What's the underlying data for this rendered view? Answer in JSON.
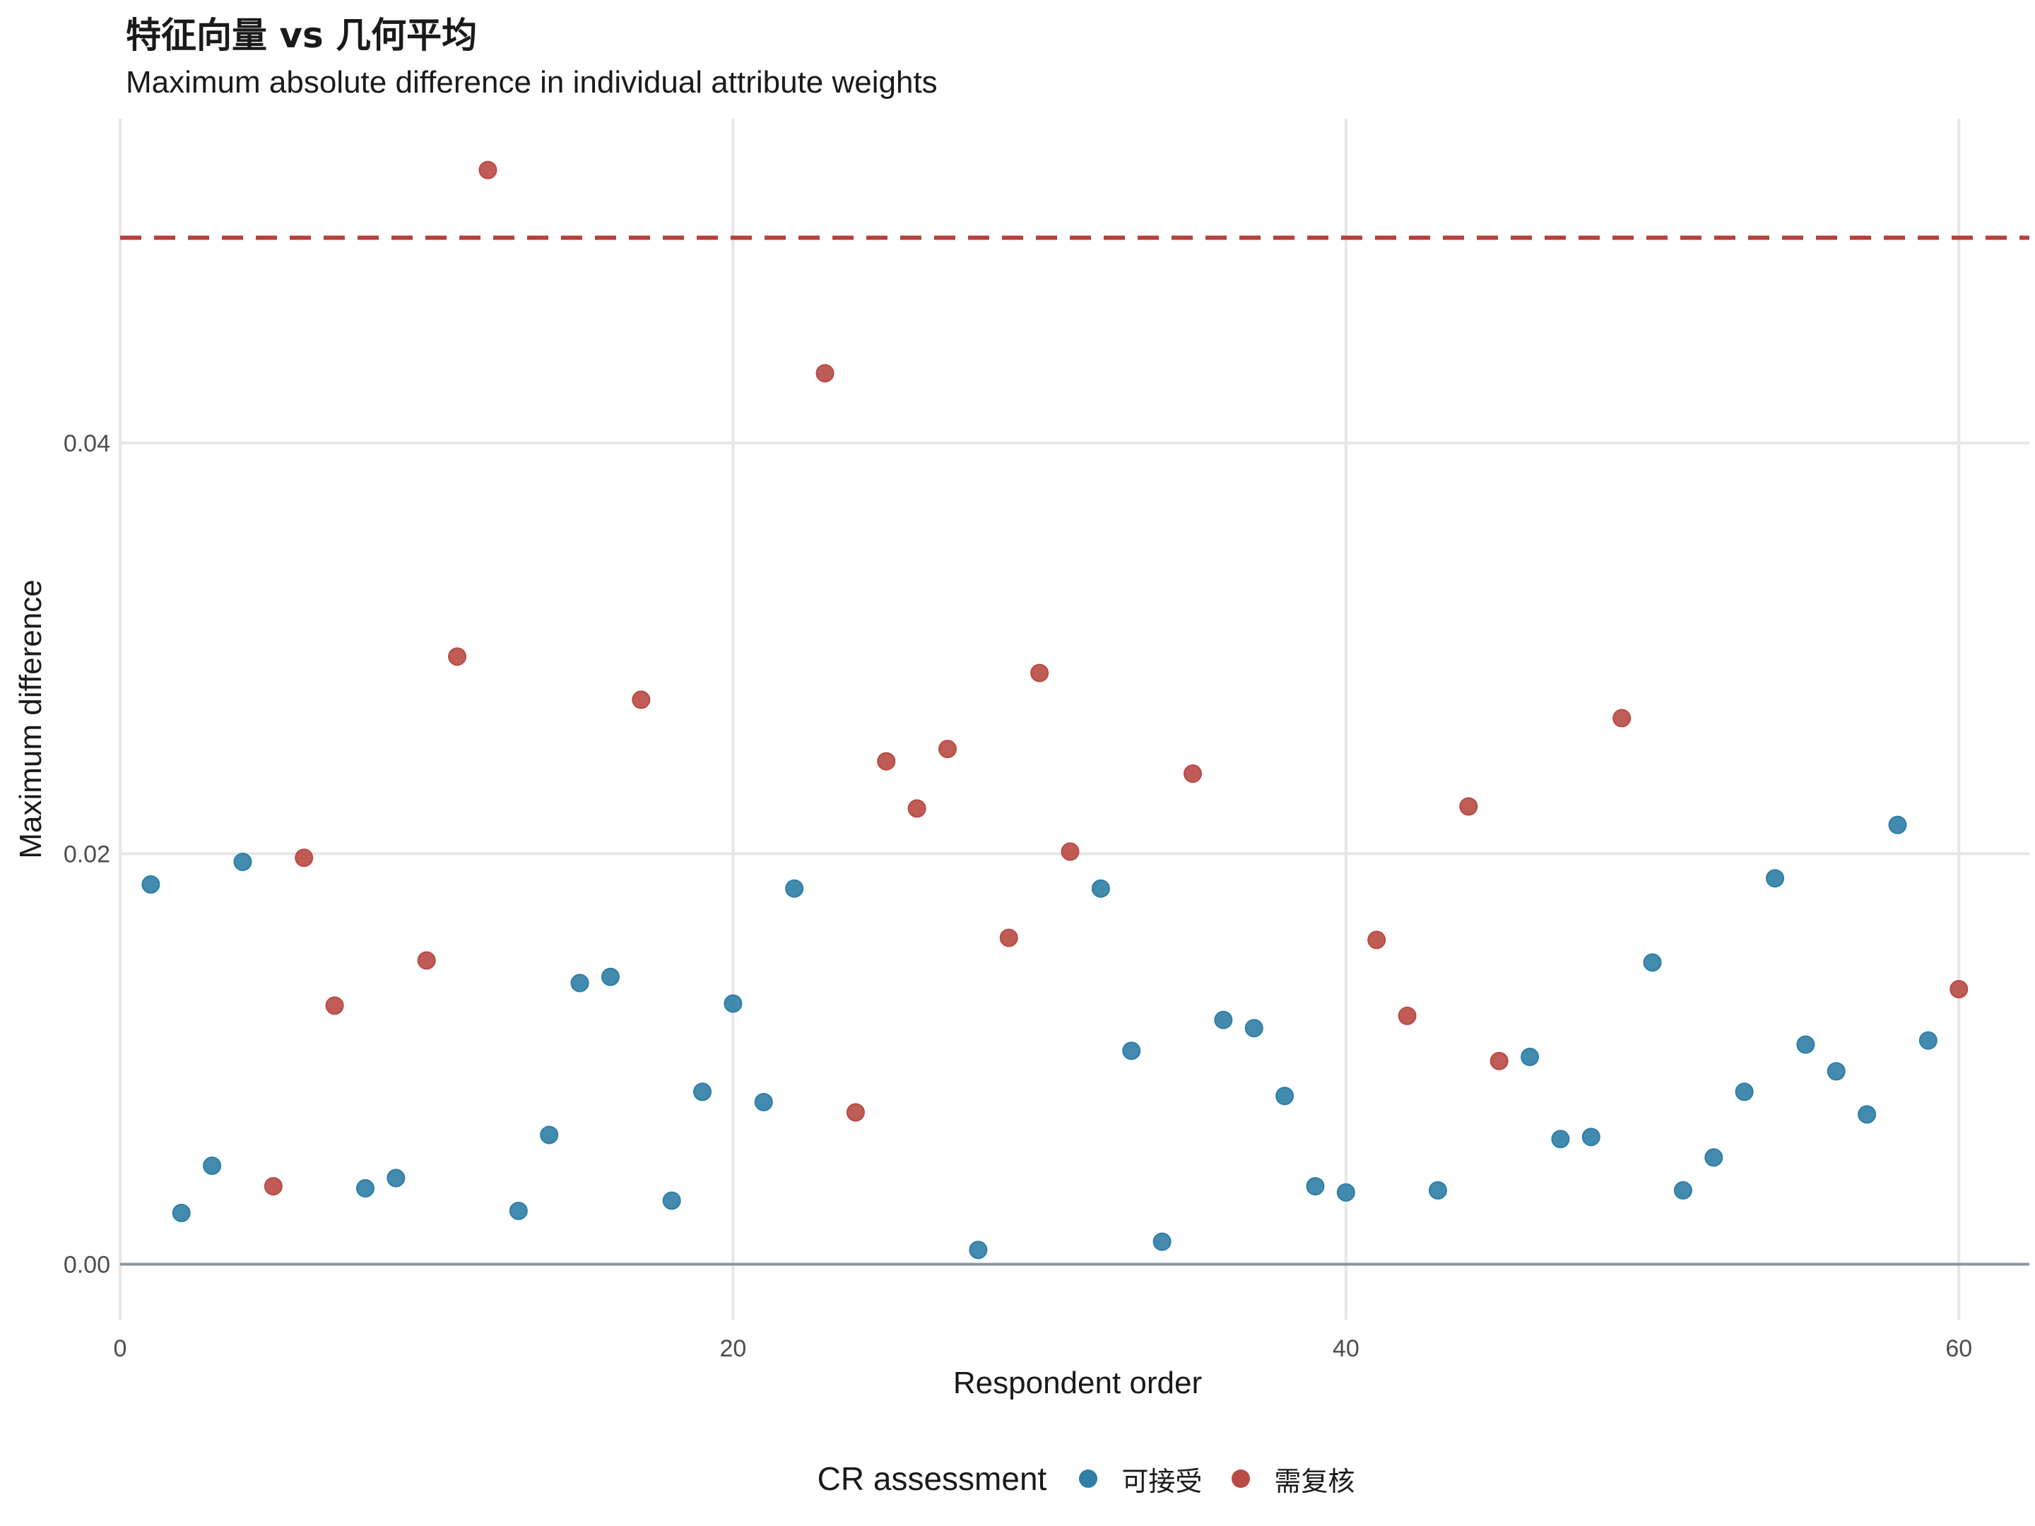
{
  "chart_data": {
    "type": "scatter",
    "title": "特征向量 vs 几何平均",
    "subtitle": "Maximum absolute difference in individual attribute weights",
    "xlabel": "Respondent order",
    "ylabel": "Maximum difference",
    "xlim": [
      0,
      62.3
    ],
    "ylim": [
      -0.0027,
      0.0558
    ],
    "x_ticks": [
      0,
      20,
      40,
      60
    ],
    "y_ticks": [
      0.0,
      0.02,
      0.04
    ],
    "x_tick_labels": [
      "0",
      "20",
      "40",
      "60"
    ],
    "y_tick_labels": [
      "0.00",
      "0.02",
      "0.04"
    ],
    "reference_line": {
      "y": 0.05,
      "style": "dashed",
      "color": "#b5403c"
    },
    "baseline": {
      "y": 0.0,
      "color": "#8a96a0"
    },
    "grid": true,
    "legend": {
      "title": "CR assessment",
      "position": "bottom",
      "entries": [
        {
          "label": "可接受",
          "color": "#2e7ea6"
        },
        {
          "label": "需复核",
          "color": "#b94a44"
        }
      ]
    },
    "series": [
      {
        "name": "可接受",
        "color": "#2e7ea6",
        "points": [
          [
            1,
            0.0185
          ],
          [
            2,
            0.0025
          ],
          [
            3,
            0.0048
          ],
          [
            4,
            0.0196
          ],
          [
            8,
            0.0037
          ],
          [
            9,
            0.0042
          ],
          [
            13,
            0.0026
          ],
          [
            14,
            0.0063
          ],
          [
            15,
            0.0137
          ],
          [
            16,
            0.014
          ],
          [
            18,
            0.0031
          ],
          [
            19,
            0.0084
          ],
          [
            20,
            0.0127
          ],
          [
            21,
            0.0079
          ],
          [
            22,
            0.0183
          ],
          [
            28,
            0.0007
          ],
          [
            32,
            0.0183
          ],
          [
            33,
            0.0104
          ],
          [
            34,
            0.0011
          ],
          [
            36,
            0.0119
          ],
          [
            37,
            0.0115
          ],
          [
            38,
            0.0082
          ],
          [
            39,
            0.0038
          ],
          [
            40,
            0.0035
          ],
          [
            43,
            0.0036
          ],
          [
            46,
            0.0101
          ],
          [
            47,
            0.0061
          ],
          [
            48,
            0.0062
          ],
          [
            50,
            0.0147
          ],
          [
            51,
            0.0036
          ],
          [
            52,
            0.0052
          ],
          [
            53,
            0.0084
          ],
          [
            54,
            0.0188
          ],
          [
            55,
            0.0107
          ],
          [
            56,
            0.0094
          ],
          [
            57,
            0.0073
          ],
          [
            58,
            0.0214
          ],
          [
            59,
            0.0109
          ]
        ]
      },
      {
        "name": "需复核",
        "color": "#b94a44",
        "points": [
          [
            5,
            0.0038
          ],
          [
            6,
            0.0198
          ],
          [
            7,
            0.0126
          ],
          [
            10,
            0.0148
          ],
          [
            11,
            0.0296
          ],
          [
            12,
            0.0533
          ],
          [
            17,
            0.0275
          ],
          [
            23,
            0.0434
          ],
          [
            24,
            0.0074
          ],
          [
            25,
            0.0245
          ],
          [
            26,
            0.0222
          ],
          [
            27,
            0.0251
          ],
          [
            29,
            0.0159
          ],
          [
            30,
            0.0288
          ],
          [
            31,
            0.0201
          ],
          [
            35,
            0.0239
          ],
          [
            41,
            0.0158
          ],
          [
            42,
            0.0121
          ],
          [
            44,
            0.0223
          ],
          [
            45,
            0.0099
          ],
          [
            49,
            0.0266
          ],
          [
            60,
            0.0134
          ]
        ]
      }
    ]
  }
}
